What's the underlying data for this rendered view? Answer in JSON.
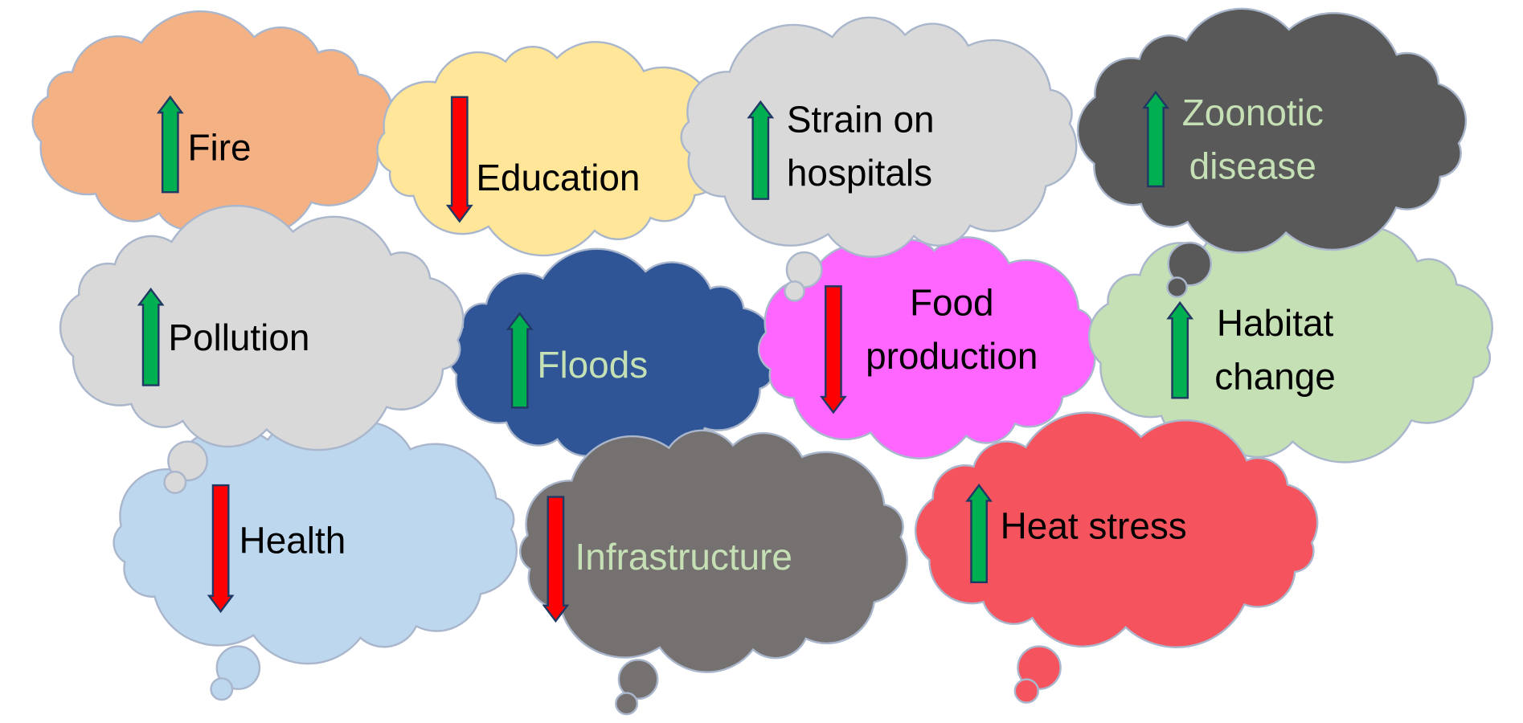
{
  "nodes": [
    {
      "label": [
        "Fire"
      ]
    },
    {
      "label": [
        "Education"
      ]
    },
    {
      "label": [
        "Floods"
      ]
    },
    {
      "label": [
        "Food",
        "production"
      ]
    },
    {
      "label": [
        "Habitat",
        "change"
      ]
    },
    {
      "label": [
        "Health"
      ]
    },
    {
      "label": [
        "Pollution"
      ]
    },
    {
      "label": [
        "Infrastructure"
      ]
    },
    {
      "label": [
        "Heat stress"
      ]
    },
    {
      "label": [
        "Strain on",
        "hospitals"
      ]
    },
    {
      "label": [
        "Zoonotic",
        "disease"
      ]
    }
  ]
}
